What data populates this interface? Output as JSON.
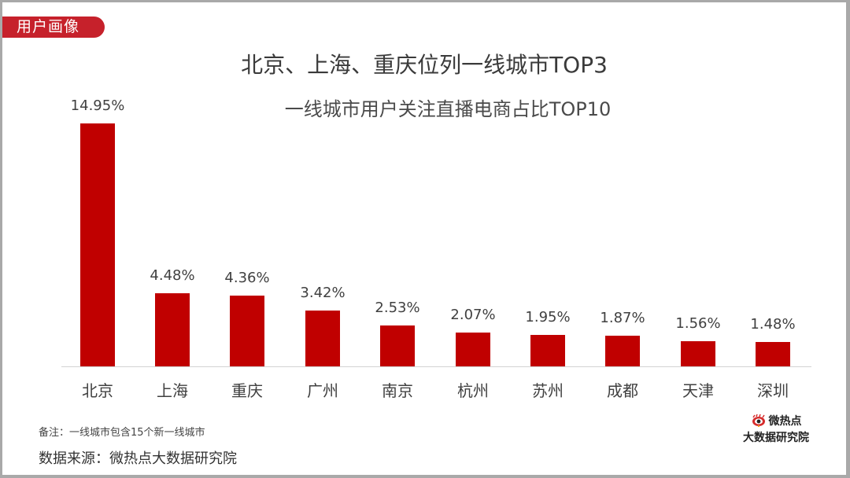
{
  "tag": {
    "label": "用户画像"
  },
  "header": {
    "title": "北京、上海、重庆位列一线城市TOP3",
    "subtitle": "一线城市用户关注直播电商占比TOP10"
  },
  "bars": [
    {
      "city": "北京",
      "value_label": "14.95%"
    },
    {
      "city": "上海",
      "value_label": "4.48%"
    },
    {
      "city": "重庆",
      "value_label": "4.36%"
    },
    {
      "city": "广州",
      "value_label": "3.42%"
    },
    {
      "city": "南京",
      "value_label": "2.53%"
    },
    {
      "city": "杭州",
      "value_label": "2.07%"
    },
    {
      "city": "苏州",
      "value_label": "1.95%"
    },
    {
      "city": "成都",
      "value_label": "1.87%"
    },
    {
      "city": "天津",
      "value_label": "1.56%"
    },
    {
      "city": "深圳",
      "value_label": "1.48%"
    }
  ],
  "footer": {
    "note": "备注：一线城市包含15个新一线城市",
    "source": "数据来源：微热点大数据研究院"
  },
  "logo": {
    "line1": "微热点",
    "line2": "大数据研究院",
    "icon": "weibo-eye-icon"
  },
  "colors": {
    "bar": "#c00000",
    "tag_bg": "#c6212b",
    "axis": "#d3d3d3"
  },
  "chart_data": {
    "type": "bar",
    "title": "北京、上海、重庆位列一线城市TOP3",
    "subtitle": "一线城市用户关注直播电商占比TOP10",
    "categories": [
      "北京",
      "上海",
      "重庆",
      "广州",
      "南京",
      "杭州",
      "苏州",
      "成都",
      "天津",
      "深圳"
    ],
    "values": [
      14.95,
      4.48,
      4.36,
      3.42,
      2.53,
      2.07,
      1.95,
      1.87,
      1.56,
      1.48
    ],
    "unit": "%",
    "xlabel": "",
    "ylabel": "",
    "ylim": [
      0,
      15
    ],
    "grid": false,
    "legend": null,
    "data_labels": true
  }
}
